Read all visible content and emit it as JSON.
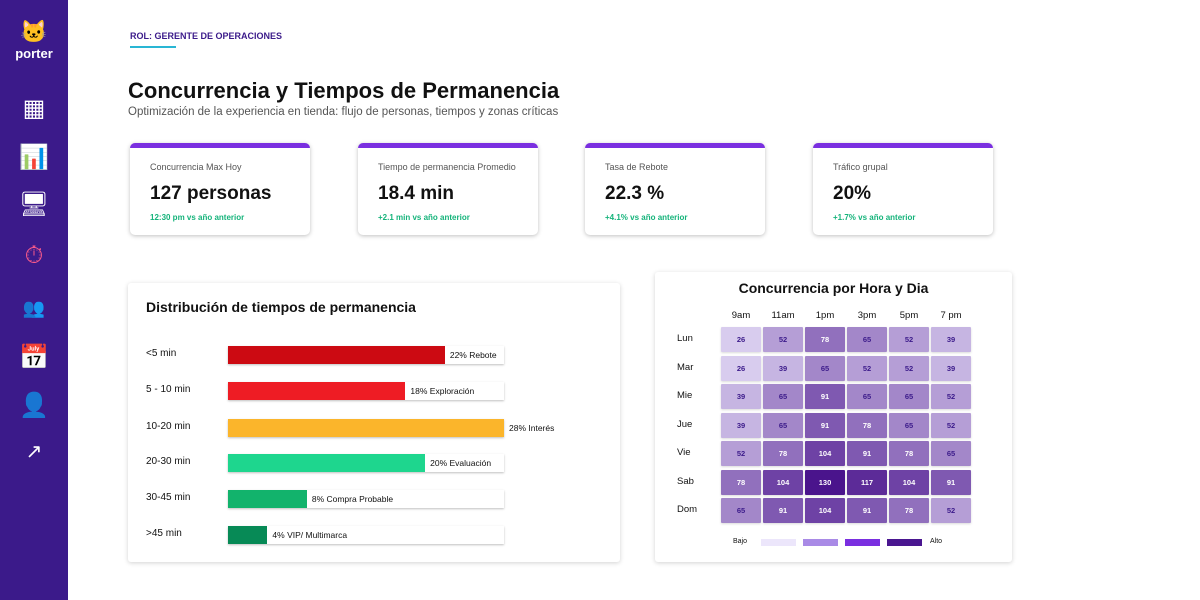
{
  "brand": {
    "name": "porter"
  },
  "sidebar": {
    "items": [
      {
        "icon": "dashboard-icon"
      },
      {
        "icon": "analytics-icon"
      },
      {
        "icon": "monitor-chart-icon"
      },
      {
        "icon": "stopwatch-icon",
        "active": true
      },
      {
        "icon": "users-icon"
      },
      {
        "icon": "calendar-icon"
      },
      {
        "icon": "user-check-icon"
      },
      {
        "icon": "trending-up-icon"
      }
    ]
  },
  "header": {
    "role": "ROL: GERENTE DE OPERACIONES",
    "title": "Concurrencia y Tiempos de Permanencia",
    "subtitle": "Optimización de la experiencia en tienda: flujo de personas, tiempos y zonas críticas"
  },
  "kpis": [
    {
      "label": "Concurrencia Max Hoy",
      "value": "127 personas",
      "change": "12:30 pm vs año anterior"
    },
    {
      "label": "Tiempo de permanencia Promedio",
      "value": "18.4 min",
      "change": "+2.1 min vs año anterior"
    },
    {
      "label": "Tasa de Rebote",
      "value": "22.3 %",
      "change": "+4.1% vs año anterior"
    },
    {
      "label": "Tráfico grupal",
      "value": "20%",
      "change": "+1.7% vs año anterior"
    }
  ],
  "colors": {
    "accent": "#7a2fe0",
    "sidebar": "#3b1a8a",
    "positive": "#14b37a"
  },
  "chart_data": [
    {
      "type": "bar",
      "title": "Distribución de tiempos de permanencia",
      "orientation": "horizontal",
      "categories": [
        "<5 min",
        "5 - 10 min",
        "10-20 min",
        "20-30 min",
        "30-45 min",
        ">45 min"
      ],
      "values": [
        22,
        18,
        28,
        20,
        8,
        4
      ],
      "labels": [
        "22% Rebote",
        "18% Exploración",
        "28% Interés",
        "20% Evaluación",
        "8% Compra Probable",
        "4% VIP/ Multimarca"
      ],
      "colors": [
        "#cc0a12",
        "#ee1c24",
        "#fbb52b",
        "#1ed68e",
        "#12b36c",
        "#078a56"
      ]
    },
    {
      "type": "heatmap",
      "title": "Concurrencia por Hora y Dia",
      "x": [
        "9am",
        "11am",
        "1pm",
        "3pm",
        "5pm",
        "7 pm"
      ],
      "y": [
        "Lun",
        "Mar",
        "Mie",
        "Jue",
        "Vie",
        "Sab",
        "Dom"
      ],
      "values": [
        [
          26,
          52,
          78,
          65,
          52,
          39
        ],
        [
          26,
          39,
          65,
          52,
          52,
          39
        ],
        [
          39,
          65,
          91,
          65,
          65,
          52
        ],
        [
          39,
          65,
          91,
          78,
          65,
          52
        ],
        [
          52,
          78,
          104,
          91,
          78,
          65
        ],
        [
          78,
          104,
          130,
          117,
          104,
          91
        ],
        [
          65,
          91,
          104,
          91,
          78,
          52
        ]
      ],
      "legend": {
        "low": "Bajo",
        "high": "Alto",
        "colors": [
          "#ece6fb",
          "#a98ae6",
          "#7a2fe0",
          "#4a1690"
        ]
      }
    }
  ]
}
